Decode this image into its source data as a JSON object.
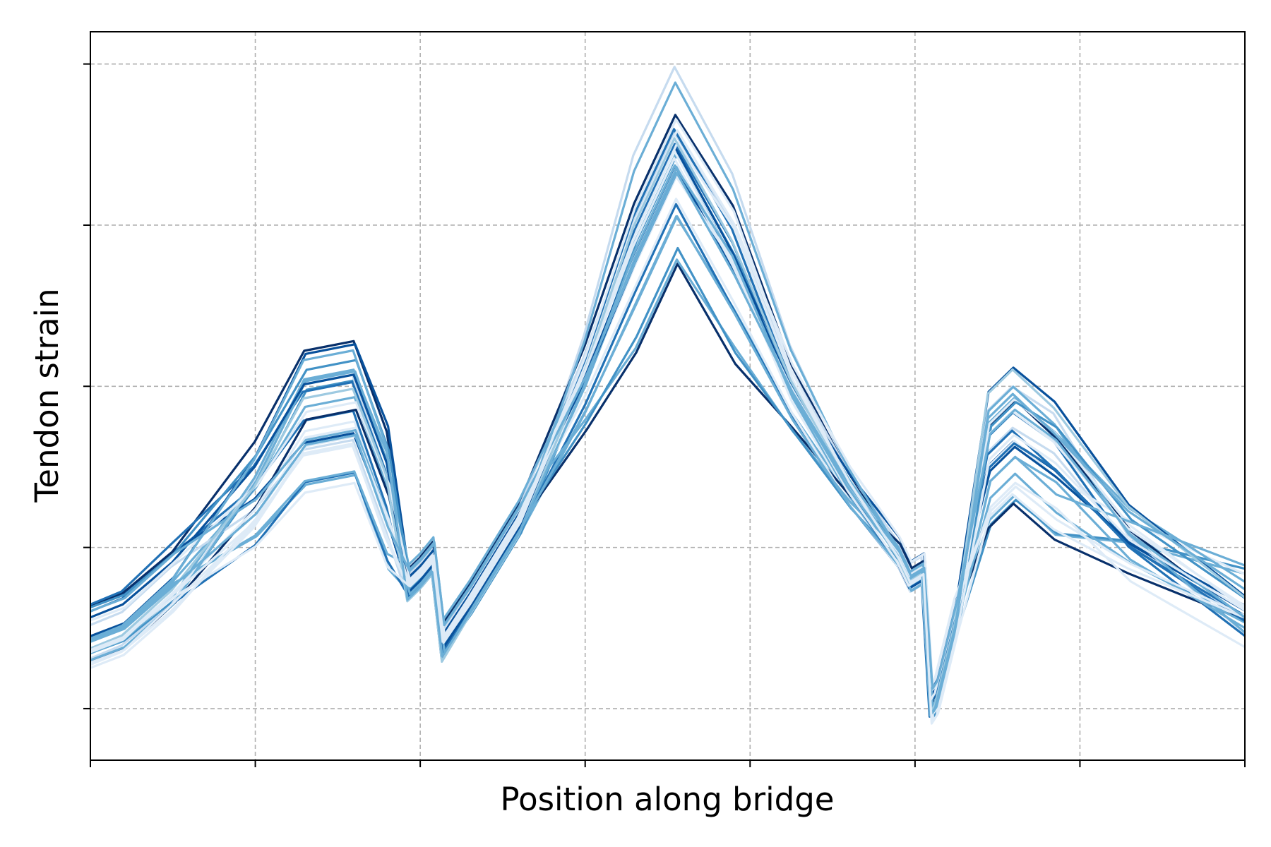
{
  "chart_data": {
    "type": "line",
    "title": "",
    "xlabel": "Position along bridge",
    "ylabel": "Tendon strain",
    "xlim": [
      0,
      7
    ],
    "ylim": [
      -0.32,
      4.2
    ],
    "xticks": [
      0,
      1,
      2,
      3,
      4,
      5,
      6,
      7
    ],
    "yticks": [
      0,
      1,
      2,
      3,
      4
    ],
    "tick_labels_shown": false,
    "grid": true,
    "legend": "none",
    "colormap": "Blues",
    "colors": {
      "gradient": [
        "#deebf7",
        "#c6dbef",
        "#9ecae1",
        "#6baed6",
        "#4292c6",
        "#2171b5",
        "#08519c",
        "#08306b"
      ],
      "grid": "#b0b0b0",
      "axes": "#000000"
    },
    "profile_x": [
      0,
      0.2,
      0.5,
      1.0,
      1.3,
      1.6,
      1.8,
      1.93,
      2.0,
      2.08,
      2.14,
      2.3,
      2.6,
      3.0,
      3.3,
      3.55,
      3.9,
      4.25,
      4.6,
      4.9,
      4.97,
      5.05,
      5.1,
      5.13,
      5.25,
      5.45,
      5.6,
      5.85,
      6.3,
      7.0
    ],
    "n_series": 28,
    "series_summary": {
      "start_y_range": [
        0.25,
        0.65
      ],
      "peak1_y_range": [
        1.4,
        2.35
      ],
      "dip1_y_range": [
        0.6,
        0.85
      ],
      "peak2_y_range": [
        2.75,
        4.0
      ],
      "dip2_y_range": [
        0.75,
        0.95
      ],
      "min_y_range": [
        -0.1,
        0.15
      ],
      "peak3_y_range": [
        1.25,
        2.15
      ],
      "end_y_range": [
        0.38,
        0.9
      ]
    }
  }
}
